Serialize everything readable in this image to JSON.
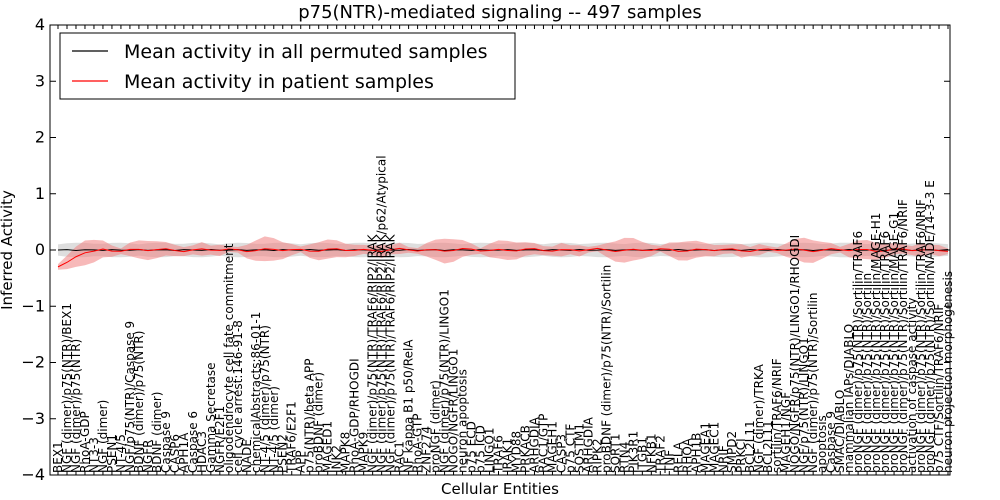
{
  "chart_data": {
    "type": "line",
    "title": "p75(NTR)-mediated signaling -- 497 samples",
    "xlabel": "Cellular Entities",
    "ylabel": "Inferred Activity",
    "ylim": [
      -4,
      4
    ],
    "yticks": [
      -4,
      -3,
      -2,
      -1,
      0,
      1,
      2,
      3,
      4
    ],
    "grid": false,
    "legend_position": "top-left",
    "legend": [
      "Mean activity in all permuted samples",
      "Mean activity in patient samples"
    ],
    "series": [
      {
        "name": "Mean activity in all permuted samples",
        "color": "#000000",
        "band_color": "#c8c8c8",
        "mean": 0.0,
        "band": 0.1
      },
      {
        "name": "Mean activity in patient samples",
        "color": "#ff0000",
        "band_color": "#f08080",
        "start_values": [
          -0.3,
          -0.22,
          -0.12,
          -0.05,
          -0.02
        ],
        "band_widths": [
          0.05,
          0.12,
          0.18,
          0.22,
          0.2,
          0.15,
          0.1,
          0.05,
          0.12,
          0.16,
          0.17,
          0.15,
          0.12,
          0.1,
          0.08,
          0.08,
          0.12,
          0.08,
          0.1,
          0.05
        ]
      }
    ],
    "categories": [
      "BEX1",
      "NGF (dimer)/p75(NTR)/BEX1",
      "NGF (dimer)/p75(NTR)",
      "RhoA-GDP",
      "NT3-3",
      "NGF (dimer)",
      "PSEN1",
      "NT-4/5",
      "NGF/p75(NTR)/Caspase 9",
      "BDNF (dimer)/p75(NTR)",
      "NGFR",
      "BDNF (dimer)",
      "Caspase 9",
      "CASP6",
      "APH1A",
      "Caspase 6",
      "HDAC3",
      "Gamma Secretase",
      "NGFR/E2F1",
      "oligodendrocyte cell fate commitment",
      "cell cycle arrest:146-91-8",
      "NADE",
      "chemicalAbstracts:86-01-1",
      "NT-4/5 (dimer)/p75(NTR)",
      "NT-4/5 (dimer)",
      "PSEN2",
      "TRAF6/E2F1",
      "APP",
      "p75(NTR)/beta APP",
      "proBDNF (dimer)",
      "MAGED1",
      "JNK2",
      "MAPK8",
      "RhoA-GDP/RHOGDI",
      "MAPK9",
      "NGF (dimer)/p75(NTR)/TRAF6/RIP2/IRAK",
      "NGF (dimer)/p75(NTR)/TRAF6/RIP2/IRAK/p62/Atypical",
      "NGF (dimer)/p75(NTR)/TRAF6/RIP2/IRAK",
      "RAC1",
      "NF kappa B1 p50/RelA",
      "RhoA-GTP",
      "ZNF274",
      "proNGF (dimer)",
      "NGF (dimer)/p75(NTR)/LINGO1",
      "NOGO/NGFR/LINGO1",
      "neuron apoptosis",
      "p75 ECD",
      "p75 ICD",
      "LINGO1",
      "TRAF6",
      "IRAK1",
      "MYD88",
      "PRKACB",
      "ARHGDIA",
      "RAC1/GTP",
      "MAGEH1",
      "CASP3",
      "p75 CTF",
      "SQSTM1",
      "ARHGDIA",
      "RIPK2",
      "proBDNF (dimer)/p75(NTR)/Sortilin",
      "SORT1",
      "RTN4",
      "PIK3R1",
      "ITGB1",
      "NFKB1",
      "TRAF2",
      "TNF",
      "RELA",
      "RHOA",
      "APH1B",
      "MAGEA1",
      "MAGEC1",
      "NRIF",
      "SMPD2",
      "PRKCI",
      "BCL2L11",
      "NGF (dimer)/TRKA",
      "BCL2L11",
      "sortilin/TRAF6/NRIF",
      "MAGEH1/NGF",
      "NOGO/NGFR/p75(NTR)/LINGO1/RHOGDI",
      "NGF/p75(NTR)/LINGO1",
      "NGF (dimer)/p75(NTR)/Sortilin",
      "apoptosis",
      "Caspase 9",
      "SMAC/DIABLO",
      "mammalian IAPs/DIABLO",
      "proNGF (dimer)/p75(NTR)/Sortilin/TRAF6",
      "proNGF (dimer)/p75(NTR)/Sortilin",
      "proNGF (dimer)/p75(NTR)/Sortilin/MAGE-H1",
      "proNGF (dimer)/p75(NTR)/Sortilin/TRAF6",
      "proNGF (dimer)/p75(NTR)/Sortilin/MAGE-G1",
      "proNGF (dimer)/p75(NTR)/Sortilin/TRAF6/NRIF",
      "activation of caspase activity",
      "proNGF (dimer)/p75(NTR)/Sortilin/TRAF6/NRIF",
      "proNGF (dimer)/p75(NTR)/Sortilin/NADE/14-3-3 E",
      "p75 CTF/Sortilin/TRAF6/NRIF",
      "neuron projection morphogenesis"
    ]
  }
}
